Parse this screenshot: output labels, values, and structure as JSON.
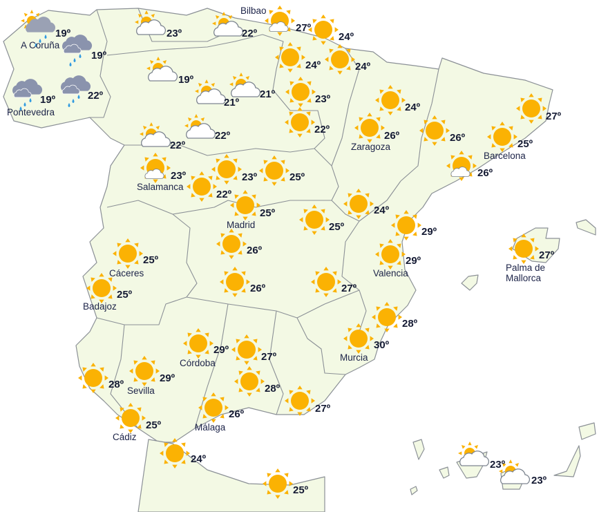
{
  "colors": {
    "land": "#f3f9e4",
    "border": "#8b9096",
    "sun": "#fbb203",
    "rain_cloud": "#8a93ad",
    "rain_drop": "#2f9ae0",
    "text": "#141a33"
  },
  "stations": [
    {
      "city": "A Coruña",
      "temp": "19º",
      "icon": "sun-cloud-rain"
    },
    {
      "city": "",
      "temp": "19º",
      "icon": "rain"
    },
    {
      "city": "Pontevedra",
      "temp": "19º",
      "icon": "rain"
    },
    {
      "city": "",
      "temp": "22º",
      "icon": "rain"
    },
    {
      "city": "",
      "temp": "23º",
      "icon": "sun-cloud"
    },
    {
      "city": "Bilbao",
      "temp": "22º",
      "icon": "sun-cloud"
    },
    {
      "city": "",
      "temp": "27º",
      "icon": "sun-small-cloud"
    },
    {
      "city": "",
      "temp": "24º",
      "icon": "sun"
    },
    {
      "city": "",
      "temp": "24º",
      "icon": "sun"
    },
    {
      "city": "",
      "temp": "24º",
      "icon": "sun"
    },
    {
      "city": "",
      "temp": "19º",
      "icon": "sun-cloud"
    },
    {
      "city": "",
      "temp": "21º",
      "icon": "sun-cloud"
    },
    {
      "city": "",
      "temp": "21º",
      "icon": "sun-cloud"
    },
    {
      "city": "",
      "temp": "23º",
      "icon": "sun"
    },
    {
      "city": "",
      "temp": "22º",
      "icon": "sun"
    },
    {
      "city": "",
      "temp": "22º",
      "icon": "sun-cloud"
    },
    {
      "city": "",
      "temp": "22º",
      "icon": "sun-cloud"
    },
    {
      "city": "",
      "temp": "24º",
      "icon": "sun"
    },
    {
      "city": "Zaragoza",
      "temp": "26º",
      "icon": "sun"
    },
    {
      "city": "",
      "temp": "26º",
      "icon": "sun"
    },
    {
      "city": "",
      "temp": "27º",
      "icon": "sun"
    },
    {
      "city": "Barcelona",
      "temp": "25º",
      "icon": "sun"
    },
    {
      "city": "",
      "temp": "26º",
      "icon": "sun-small-cloud"
    },
    {
      "city": "Salamanca",
      "temp": "23º",
      "icon": "sun-small-cloud"
    },
    {
      "city": "",
      "temp": "23º",
      "icon": "sun"
    },
    {
      "city": "",
      "temp": "25º",
      "icon": "sun"
    },
    {
      "city": "",
      "temp": "22º",
      "icon": "sun"
    },
    {
      "city": "Madrid",
      "temp": "25º",
      "icon": "sun"
    },
    {
      "city": "",
      "temp": "24º",
      "icon": "sun"
    },
    {
      "city": "",
      "temp": "25º",
      "icon": "sun"
    },
    {
      "city": "",
      "temp": "29º",
      "icon": "sun"
    },
    {
      "city": "",
      "temp": "26º",
      "icon": "sun"
    },
    {
      "city": "Valencia",
      "temp": "29º",
      "icon": "sun"
    },
    {
      "city": "Palma de Mallorca",
      "temp": "27º",
      "icon": "sun"
    },
    {
      "city": "Cáceres",
      "temp": "25º",
      "icon": "sun"
    },
    {
      "city": "Badajoz",
      "temp": "25º",
      "icon": "sun"
    },
    {
      "city": "",
      "temp": "26º",
      "icon": "sun"
    },
    {
      "city": "",
      "temp": "27º",
      "icon": "sun"
    },
    {
      "city": "",
      "temp": "28º",
      "icon": "sun"
    },
    {
      "city": "Murcia",
      "temp": "30º",
      "icon": "sun"
    },
    {
      "city": "Córdoba",
      "temp": "29º",
      "icon": "sun"
    },
    {
      "city": "",
      "temp": "27º",
      "icon": "sun"
    },
    {
      "city": "Sevilla",
      "temp": "29º",
      "icon": "sun"
    },
    {
      "city": "",
      "temp": "28º",
      "icon": "sun"
    },
    {
      "city": "",
      "temp": "28º",
      "icon": "sun"
    },
    {
      "city": "",
      "temp": "27º",
      "icon": "sun"
    },
    {
      "city": "Málaga",
      "temp": "26º",
      "icon": "sun"
    },
    {
      "city": "Cádiz",
      "temp": "25º",
      "icon": "sun"
    },
    {
      "city": "",
      "temp": "24º",
      "icon": "sun"
    },
    {
      "city": "",
      "temp": "25º",
      "icon": "sun"
    },
    {
      "city": "",
      "temp": "23º",
      "icon": "sun-cloud"
    },
    {
      "city": "",
      "temp": "23º",
      "icon": "sun-cloud"
    }
  ]
}
